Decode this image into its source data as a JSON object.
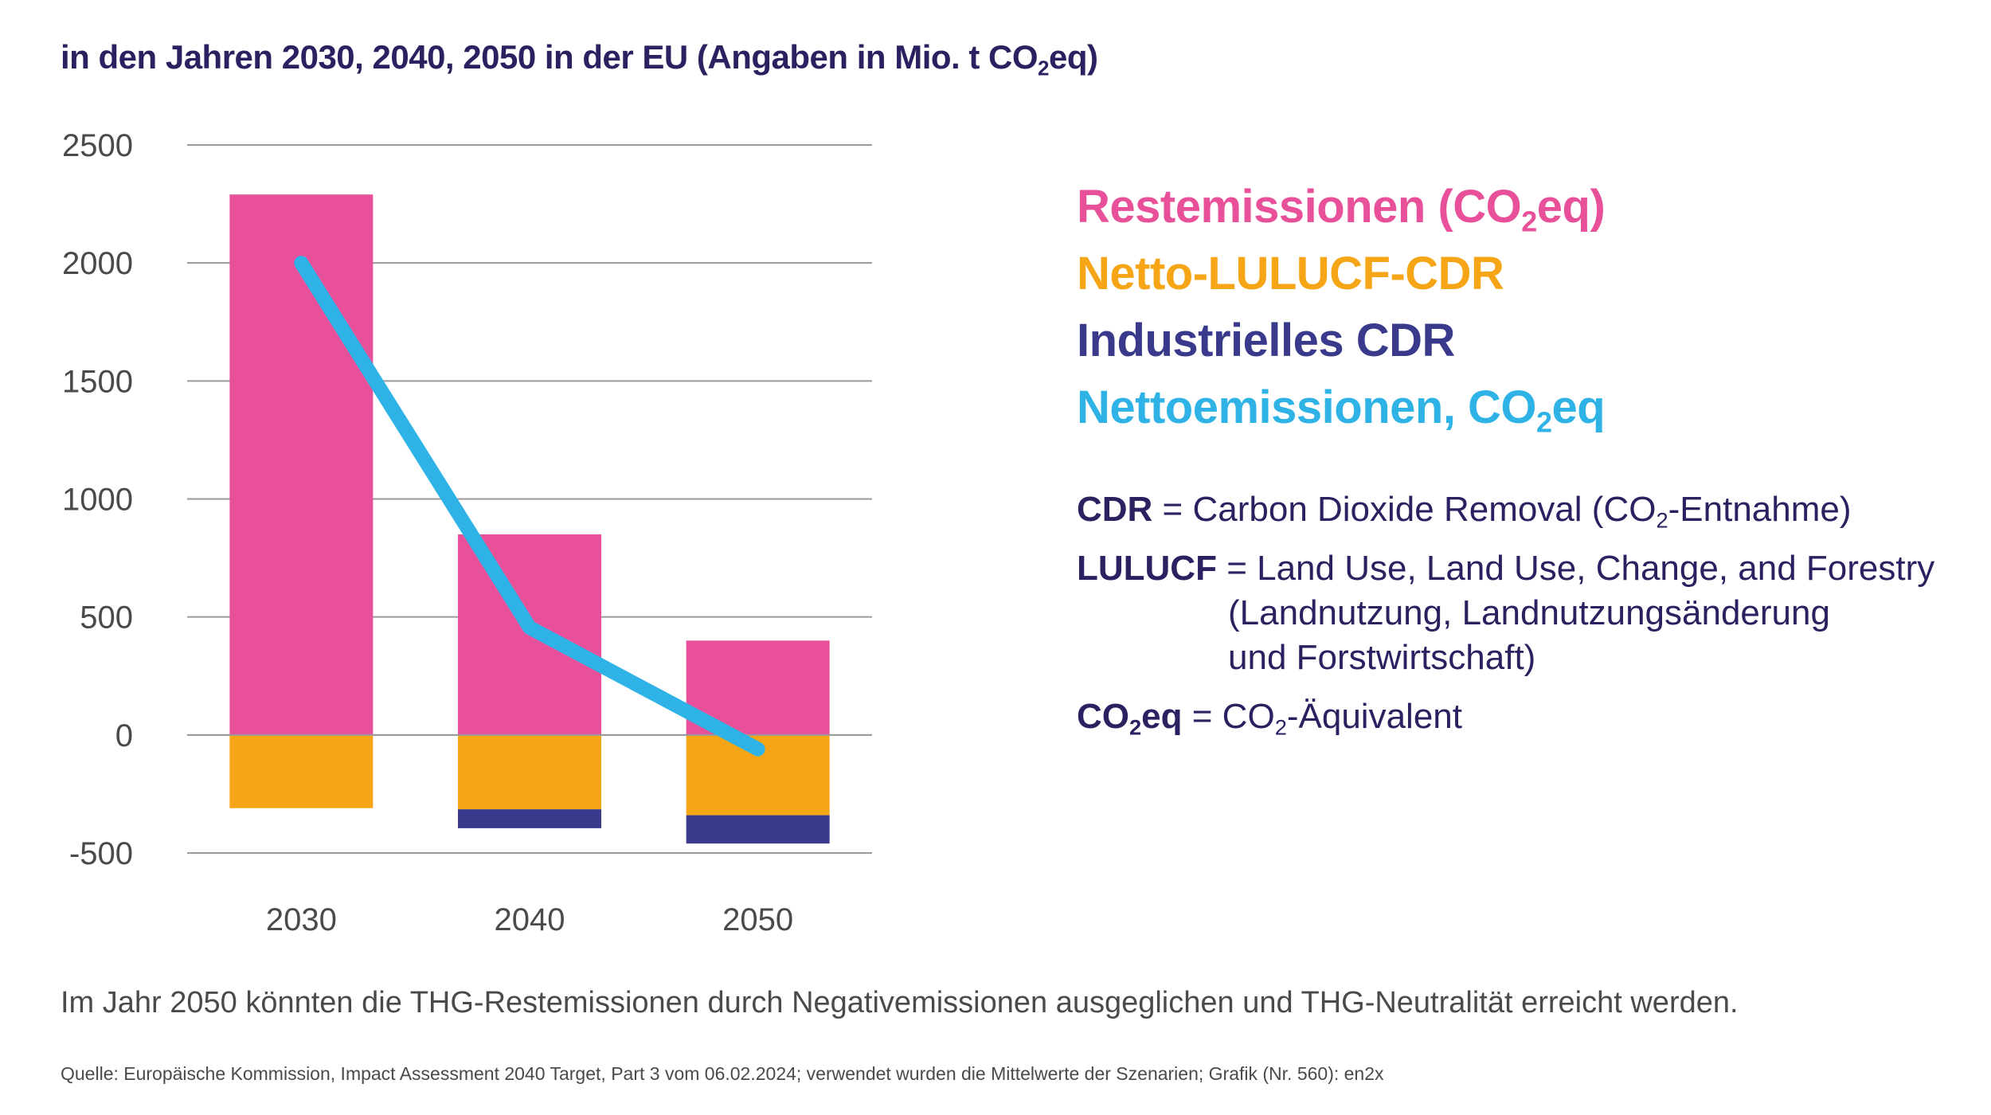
{
  "title": {
    "prefix": "in den Jahren 2030, 2040, 2050 in der EU (Angaben in Mio. t CO",
    "sub": "2",
    "suffix": "eq)"
  },
  "colors": {
    "restemissionen": "#e8519a",
    "lulucf": "#f5a516",
    "industrial_cdr": "#3a3a8c",
    "netto": "#2fb3e6",
    "text_dark": "#2b2060",
    "axis_text": "#4a4a4a",
    "grid": "#9a9a9a"
  },
  "legend": [
    {
      "prefix": "Restemissionen (CO",
      "sub": "2",
      "suffix": "eq)",
      "color": "#e8519a"
    },
    {
      "prefix": "Netto-LULUCF-CDR",
      "sub": "",
      "suffix": "",
      "color": "#f5a516"
    },
    {
      "prefix": "Industrielles CDR",
      "sub": "",
      "suffix": "",
      "color": "#3a3a8c"
    },
    {
      "prefix": "Nettoemissionen, CO",
      "sub": "2",
      "suffix": "eq",
      "color": "#2fb3e6"
    }
  ],
  "notes": {
    "cdr_term": "CDR",
    "cdr_def_prefix": " = Carbon Dioxide Removal (CO",
    "cdr_def_sub": "2",
    "cdr_def_suffix": "-Entnahme)",
    "lulucf_term": "LULUCF",
    "lulucf_def_1": " = Land Use, Land Use, Change, and Forestry",
    "lulucf_def_2": "(Landnutzung, Landnutzungsänderung",
    "lulucf_def_3": "und Forstwirtschaft)",
    "co2_term_prefix": "CO",
    "co2_term_sub": "2",
    "co2_term_suffix": "eq",
    "co2_def_prefix": " = CO",
    "co2_def_sub": "2",
    "co2_def_suffix": "-Äquivalent"
  },
  "caption": "Im Jahr 2050 könnten die THG-Restemissionen durch Negativemissionen ausgeglichen und THG-Neutralität erreicht werden.",
  "source": "Quelle: Europäische Kommission, Impact Assessment 2040 Target, Part 3 vom 06.02.2024; verwendet wurden die Mittelwerte der Szenarien; Grafik (Nr. 560): en2x",
  "chart_data": {
    "type": "bar",
    "stacked": true,
    "categories": [
      "2030",
      "2040",
      "2050"
    ],
    "series": [
      {
        "name": "Restemissionen (CO2eq)",
        "key": "restemissionen",
        "values": [
          2290,
          850,
          400
        ]
      },
      {
        "name": "Netto-LULUCF-CDR",
        "key": "lulucf",
        "values": [
          -310,
          -315,
          -340
        ]
      },
      {
        "name": "Industrielles CDR",
        "key": "industrial_cdr",
        "values": [
          0,
          -80,
          -120
        ]
      }
    ],
    "line": {
      "name": "Nettoemissionen, CO2eq",
      "key": "netto",
      "values": [
        2000,
        455,
        -60
      ]
    },
    "ylim": [
      -500,
      2500
    ],
    "yticks": [
      2500,
      2000,
      1500,
      1000,
      500,
      0,
      -500
    ],
    "grid": true,
    "xlabel": "",
    "ylabel": ""
  }
}
